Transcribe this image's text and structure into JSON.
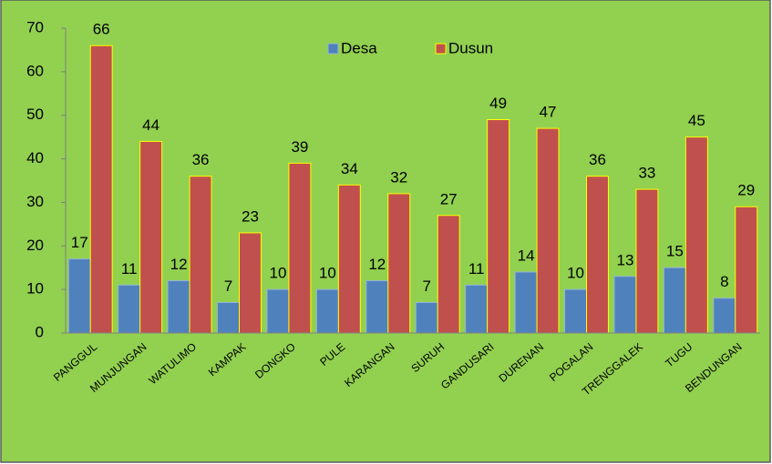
{
  "chart_data": {
    "type": "bar",
    "categories": [
      "PANGGUL",
      "MUNJUNGAN",
      "WATULIMO",
      "KAMPAK",
      "DONGKO",
      "PULE",
      "KARANGAN",
      "SURUH",
      "GANDUSARI",
      "DURENAN",
      "POGALAN",
      "TRENGGALEK",
      "TUGU",
      "BENDUNGAN"
    ],
    "series": [
      {
        "name": "Desa",
        "color": "#4f81bd",
        "values": [
          17,
          11,
          12,
          7,
          10,
          10,
          12,
          7,
          11,
          14,
          10,
          13,
          15,
          8
        ]
      },
      {
        "name": "Dusun",
        "color": "#c0504d",
        "values": [
          66,
          44,
          36,
          23,
          39,
          34,
          32,
          27,
          49,
          47,
          36,
          33,
          45,
          29
        ]
      }
    ],
    "ylim": [
      0,
      70
    ],
    "yticks": [
      0,
      10,
      20,
      30,
      40,
      50,
      60,
      70
    ],
    "legend": "top"
  }
}
